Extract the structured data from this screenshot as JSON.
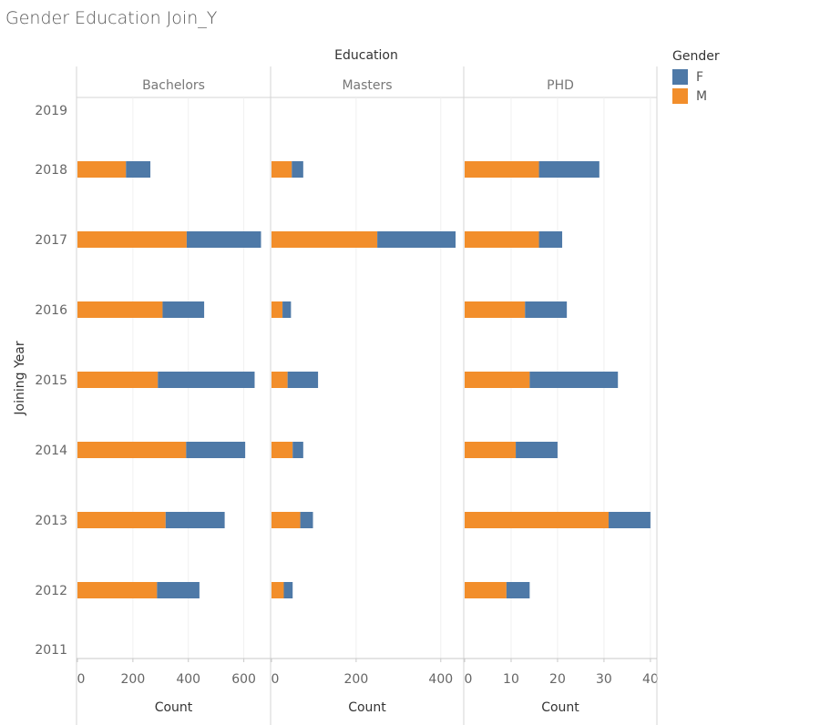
{
  "title": "Gender Education Join_Y",
  "colors": {
    "F": "#4e79a7",
    "M": "#f28e2b"
  },
  "chart_data": {
    "type": "bar",
    "orientation": "horizontal",
    "stacked": true,
    "column_header": "Education",
    "row_label": "Joining Year",
    "x_label": "Count",
    "years": [
      "2019",
      "2018",
      "2017",
      "2016",
      "2015",
      "2014",
      "2013",
      "2012",
      "2011"
    ],
    "legend": {
      "title": "Gender",
      "items": [
        "F",
        "M"
      ],
      "placement": "top-right"
    },
    "panels": [
      {
        "name": "Bachelors",
        "xlim": [
          0,
          690
        ],
        "ticks": [
          0,
          200,
          400,
          600
        ],
        "series": [
          {
            "name": "M",
            "values": [
              0,
              175,
              394,
              307,
              290,
              392,
              318,
              287,
              0
            ]
          },
          {
            "name": "F",
            "values": [
              0,
              88,
              268,
              150,
              349,
              213,
              213,
              153,
              0
            ]
          }
        ]
      },
      {
        "name": "Masters",
        "xlim": [
          0,
          450
        ],
        "ticks": [
          0,
          200,
          400
        ],
        "series": [
          {
            "name": "M",
            "values": [
              0,
              48,
              250,
              26,
              38,
              50,
              68,
              29,
              0
            ]
          },
          {
            "name": "F",
            "values": [
              0,
              27,
              185,
              20,
              72,
              25,
              30,
              21,
              0
            ]
          }
        ]
      },
      {
        "name": "PHD",
        "xlim": [
          0,
          41
        ],
        "ticks": [
          0,
          10,
          20,
          30,
          40
        ],
        "series": [
          {
            "name": "M",
            "values": [
              0,
              16,
              16,
              13,
              14,
              11,
              31,
              9,
              0
            ]
          },
          {
            "name": "F",
            "values": [
              0,
              13,
              5,
              9,
              19,
              9,
              9,
              5,
              0
            ]
          }
        ]
      }
    ]
  }
}
